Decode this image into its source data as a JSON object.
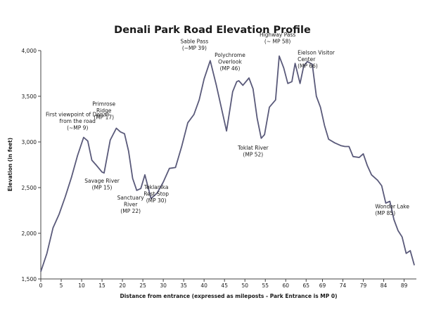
{
  "chart_data": {
    "type": "line",
    "title": "Denali Park Road Elevation Profile",
    "xlabel": "Distance from entrance (expressed as mileposts - Park Entrance is MP 0)",
    "ylabel": "Elevation (in feet)",
    "xlim": [
      0,
      92
    ],
    "ylim": [
      1500,
      4000
    ],
    "x_ticks": [
      "0",
      "5",
      "10",
      "15",
      "20",
      "25",
      "30",
      "35",
      "40",
      "45",
      "50",
      "55",
      "60",
      "65",
      "69",
      "74",
      "79",
      "84",
      "89"
    ],
    "x_tick_values": [
      0,
      5,
      10,
      15,
      20,
      25,
      30,
      35,
      40,
      45,
      50,
      55,
      60,
      65,
      69,
      74,
      79,
      84,
      89
    ],
    "y_ticks": [
      "1,500",
      "2,000",
      "2,500",
      "3,000",
      "3,500",
      "4,000"
    ],
    "y_tick_values": [
      1500,
      2000,
      2500,
      3000,
      3500,
      4000
    ],
    "grid": false,
    "line_color": "#5a5a7a",
    "series": [
      {
        "x": [
          0,
          1.5,
          3,
          4.5,
          6,
          7.5,
          9,
          10.5,
          11.5,
          12.5,
          13.5,
          15,
          15.5,
          17,
          18.5,
          19.5,
          20.5,
          21.5,
          22.5,
          23.5,
          24.5,
          25.5,
          27,
          28.5,
          30,
          31.5,
          33,
          34.5,
          36,
          37.5,
          38.8,
          40,
          41.5,
          43,
          44,
          45.5,
          47,
          48,
          48.5,
          49.5,
          51,
          52,
          53,
          54,
          54.8,
          56,
          57.5,
          58.4,
          59.5,
          60.5,
          61.5,
          62.3,
          63.5,
          64.4,
          65.3,
          66.5,
          67.5,
          68.5,
          69.5,
          70.5,
          72,
          73.5,
          74.5,
          75.5,
          76.5,
          78,
          79,
          80,
          81,
          82.5,
          83.5,
          84.5,
          85.5,
          86.5,
          87.5,
          88.5,
          89.5,
          90.5,
          91.5
        ],
        "y": [
          1580,
          1780,
          2060,
          2210,
          2400,
          2610,
          2850,
          3050,
          3010,
          2800,
          2750,
          2670,
          2660,
          3020,
          3150,
          3110,
          3090,
          2900,
          2600,
          2470,
          2490,
          2640,
          2380,
          2440,
          2560,
          2710,
          2720,
          2950,
          3210,
          3300,
          3460,
          3690,
          3890,
          3620,
          3420,
          3120,
          3550,
          3660,
          3670,
          3620,
          3700,
          3580,
          3260,
          3040,
          3080,
          3380,
          3460,
          3940,
          3810,
          3640,
          3660,
          3860,
          3640,
          3830,
          3880,
          3850,
          3500,
          3380,
          3180,
          3030,
          2990,
          2960,
          2950,
          2950,
          2840,
          2830,
          2870,
          2740,
          2640,
          2580,
          2520,
          2330,
          2350,
          2150,
          2030,
          1960,
          1780,
          1810,
          1650
        ]
      }
    ],
    "annotations": [
      {
        "lines": [
          "First viewpoint of Denali",
          "from the road",
          "(~MP 9)"
        ],
        "x": 9,
        "y": 3050
      },
      {
        "lines": [
          "Savage River",
          "(MP 15)"
        ],
        "x": 15,
        "y": 2660
      },
      {
        "lines": [
          "Primrose",
          "Ridge",
          "(MP 17)"
        ],
        "x": 17,
        "y": 3150
      },
      {
        "lines": [
          "Sanctuary",
          "River",
          "(MP 22)"
        ],
        "x": 22,
        "y": 2470
      },
      {
        "lines": [
          "Teklanika",
          "Rest Stop",
          "(MP 30)"
        ],
        "x": 30,
        "y": 2560
      },
      {
        "lines": [
          "Sable Pass",
          "(~MP 39)"
        ],
        "x": 39,
        "y": 3890
      },
      {
        "lines": [
          "Polychrome",
          "Overlook",
          "(MP 46)"
        ],
        "x": 46,
        "y": 3660
      },
      {
        "lines": [
          "Toklat River",
          "(MP 52)"
        ],
        "x": 52,
        "y": 3040
      },
      {
        "lines": [
          "Highway Pass",
          "(~ MP 58)"
        ],
        "x": 58,
        "y": 3940
      },
      {
        "lines": [
          "Eielson Visitor",
          "Center",
          "(MP 66)"
        ],
        "x": 66,
        "y": 3880
      },
      {
        "lines": [
          "Wonder Lake",
          "(MP 85)"
        ],
        "x": 85,
        "y": 2150
      }
    ]
  }
}
